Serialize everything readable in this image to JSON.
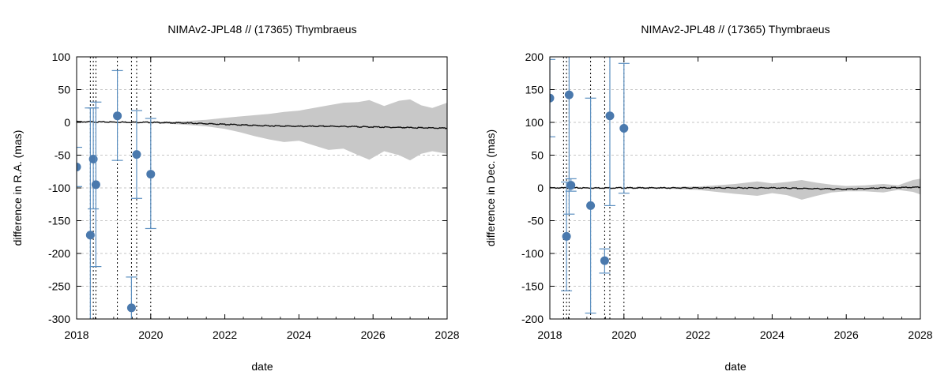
{
  "chart_data": [
    {
      "type": "scatter",
      "title": "NIMAv2-JPL48 // (17365) Thymbraeus",
      "xlabel": "date",
      "ylabel": "difference in R.A. (mas)",
      "xlim": [
        2018,
        2028
      ],
      "ylim": [
        -300,
        100
      ],
      "x_ticks": [
        "2018",
        "2020",
        "2022",
        "2024",
        "2026",
        "2028"
      ],
      "y_ticks": [
        "100",
        "50",
        "0",
        "-50",
        "-100",
        "-150",
        "-200",
        "-250",
        "-300"
      ],
      "grid": "horizontal dashed",
      "observation_epochs": [
        2018.0,
        2018.37,
        2018.45,
        2018.52,
        2019.1,
        2019.48,
        2019.62,
        2020.0
      ],
      "observations": [
        {
          "x": 2018.0,
          "y": -68,
          "err_low": -98,
          "err_high": -38
        },
        {
          "x": 2018.37,
          "y": -172,
          "err_low": -300,
          "err_high": 22
        },
        {
          "x": 2018.45,
          "y": -56,
          "err_low": -132,
          "err_high": 22
        },
        {
          "x": 2018.52,
          "y": -95,
          "err_low": -220,
          "err_high": 31
        },
        {
          "x": 2019.1,
          "y": 10,
          "err_low": -58,
          "err_high": 79
        },
        {
          "x": 2019.48,
          "y": -283,
          "err_low": -300,
          "err_high": -236
        },
        {
          "x": 2019.62,
          "y": -49,
          "err_low": -116,
          "err_high": 18
        },
        {
          "x": 2020.0,
          "y": -79,
          "err_low": -162,
          "err_high": 6
        }
      ],
      "mean_line": {
        "x": [
          2018,
          2020,
          2021,
          2022,
          2023,
          2024,
          2025,
          2026,
          2027,
          2028
        ],
        "y": [
          1,
          0,
          -1,
          -3,
          -5,
          -6,
          -6,
          -7,
          -8,
          -9
        ]
      },
      "uncertainty_band": {
        "x": [
          2020.0,
          2020.5,
          2021.0,
          2021.5,
          2022.0,
          2022.4,
          2022.8,
          2023.2,
          2023.6,
          2024.0,
          2024.4,
          2024.8,
          2025.2,
          2025.6,
          2025.9,
          2026.3,
          2026.7,
          2027.0,
          2027.3,
          2027.6,
          2028.0
        ],
        "upper": [
          1,
          1,
          2,
          4,
          7,
          9,
          11,
          13,
          16,
          18,
          22,
          26,
          30,
          31,
          34,
          25,
          33,
          35,
          26,
          22,
          30
        ],
        "lower": [
          -1,
          -2,
          -4,
          -6,
          -10,
          -15,
          -21,
          -26,
          -30,
          -28,
          -35,
          -42,
          -40,
          -50,
          -57,
          -44,
          -50,
          -58,
          -48,
          -44,
          -48
        ]
      },
      "colors": {
        "points": "#4a79ad",
        "errorbars": "#5b8fc0",
        "mean_line": "#111111",
        "band": "#c8c8c8",
        "epoch_lines": "#000000"
      }
    },
    {
      "type": "scatter",
      "title": "NIMAv2-JPL48 // (17365) Thymbraeus",
      "xlabel": "date",
      "ylabel": "difference in Dec. (mas)",
      "xlim": [
        2018,
        2028
      ],
      "ylim": [
        -200,
        200
      ],
      "x_ticks": [
        "2018",
        "2020",
        "2022",
        "2024",
        "2026",
        "2028"
      ],
      "y_ticks": [
        "200",
        "150",
        "100",
        "50",
        "0",
        "-50",
        "-100",
        "-150",
        "-200"
      ],
      "grid": "horizontal dashed",
      "observation_epochs": [
        2018.0,
        2018.37,
        2018.45,
        2018.52,
        2019.1,
        2019.48,
        2019.62,
        2020.0
      ],
      "observations": [
        {
          "x": 2018.0,
          "y": 137,
          "err_low": 78,
          "err_high": 196
        },
        {
          "x": 2018.45,
          "y": -74,
          "err_low": -157,
          "err_high": 9
        },
        {
          "x": 2018.52,
          "y": 142,
          "err_low": -40,
          "err_high": 200
        },
        {
          "x": 2018.57,
          "y": 4,
          "err_low": -5,
          "err_high": 14
        },
        {
          "x": 2019.1,
          "y": -27,
          "err_low": -191,
          "err_high": 137
        },
        {
          "x": 2019.48,
          "y": -111,
          "err_low": -130,
          "err_high": -93
        },
        {
          "x": 2019.62,
          "y": 110,
          "err_low": -27,
          "err_high": 200
        },
        {
          "x": 2020.0,
          "y": 91,
          "err_low": -8,
          "err_high": 190
        }
      ],
      "mean_line": {
        "x": [
          2018,
          2020,
          2022,
          2024,
          2025,
          2026,
          2027,
          2028
        ],
        "y": [
          0,
          0,
          0,
          0,
          -1,
          -2,
          0,
          1
        ]
      },
      "uncertainty_band": {
        "x": [
          2020.0,
          2021.0,
          2022.0,
          2022.5,
          2023.0,
          2023.6,
          2024.0,
          2024.4,
          2024.8,
          2025.2,
          2025.6,
          2026.0,
          2026.5,
          2027.0,
          2027.4,
          2027.8,
          2028.0
        ],
        "upper": [
          1,
          1,
          2,
          4,
          6,
          10,
          7,
          9,
          12,
          8,
          5,
          3,
          4,
          6,
          4,
          12,
          14
        ],
        "lower": [
          -1,
          -1,
          -3,
          -6,
          -9,
          -12,
          -8,
          -11,
          -18,
          -12,
          -7,
          -5,
          -5,
          -7,
          -3,
          -6,
          -10
        ]
      },
      "colors": {
        "points": "#4a79ad",
        "errorbars": "#5b8fc0",
        "mean_line": "#111111",
        "band": "#c8c8c8",
        "epoch_lines": "#000000"
      }
    }
  ]
}
